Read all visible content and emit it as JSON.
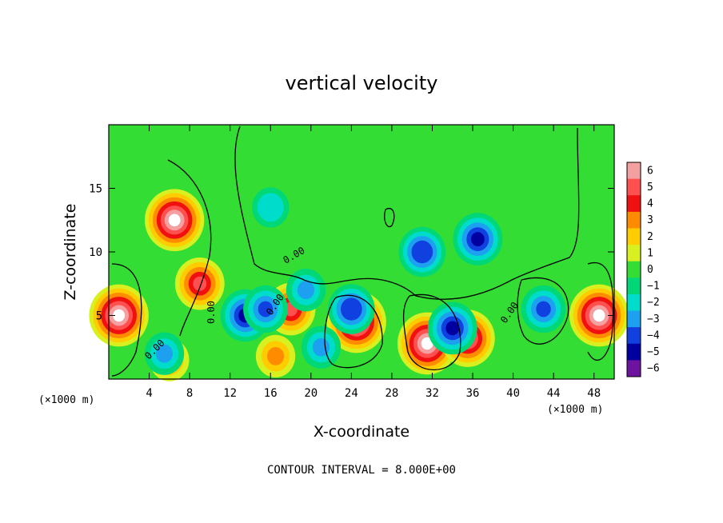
{
  "chart_data": {
    "type": "heatmap",
    "title": "vertical velocity",
    "xlabel": "X-coordinate",
    "ylabel": "Z-coordinate",
    "x_unit": "(×1000 m)",
    "y_unit": "(×1000 m)",
    "xlim": [
      0,
      50
    ],
    "ylim": [
      0,
      20
    ],
    "x_ticks": [
      4,
      8,
      12,
      16,
      20,
      24,
      28,
      32,
      36,
      40,
      44,
      48
    ],
    "y_ticks": [
      5,
      10,
      15
    ],
    "colorbar": {
      "ticks": [
        6,
        5,
        4,
        3,
        2,
        1,
        0,
        -1,
        -2,
        -3,
        -4,
        -5,
        -6
      ],
      "labels": [
        "6",
        "5",
        "4",
        "3",
        "2",
        "1",
        "0",
        "−1",
        "−2",
        "−3",
        "−4",
        "−5",
        "−6"
      ],
      "colors": [
        "#f4a0a0",
        "#ff5050",
        "#f01010",
        "#ff8c00",
        "#ffcc00",
        "#d8ef20",
        "#33dd33",
        "#00d878",
        "#00dccc",
        "#1ea0f0",
        "#1040e0",
        "#0000a0",
        "#6e12a0"
      ]
    },
    "contour_interval_text": "CONTOUR INTERVAL = 8.000E+00",
    "contour_labels": [
      "0.00",
      "0.00",
      "0.00",
      "0.00",
      "0.00"
    ],
    "features": [
      {
        "kind": "updraft",
        "x": 6.5,
        "z": 12.5,
        "strength": 7
      },
      {
        "kind": "updraft",
        "x": 9.0,
        "z": 7.5,
        "strength": 5
      },
      {
        "kind": "updraft",
        "x": 1.0,
        "z": 5.0,
        "strength": 7
      },
      {
        "kind": "updraft",
        "x": 18.0,
        "z": 5.5,
        "strength": 5
      },
      {
        "kind": "updraft",
        "x": 24.5,
        "z": 4.5,
        "strength": 7
      },
      {
        "kind": "updraft",
        "x": 31.5,
        "z": 2.8,
        "strength": 7
      },
      {
        "kind": "updraft",
        "x": 35.5,
        "z": 3.2,
        "strength": 6
      },
      {
        "kind": "updraft",
        "x": 48.5,
        "z": 5.0,
        "strength": 7
      },
      {
        "kind": "updraft",
        "x": 6.0,
        "z": 1.5,
        "strength": 3
      },
      {
        "kind": "updraft",
        "x": 16.5,
        "z": 1.8,
        "strength": 3
      },
      {
        "kind": "downdraft",
        "x": 36.5,
        "z": 11.0,
        "strength": -5
      },
      {
        "kind": "downdraft",
        "x": 31.0,
        "z": 10.0,
        "strength": -4.5
      },
      {
        "kind": "downdraft",
        "x": 24.0,
        "z": 5.5,
        "strength": -4.5
      },
      {
        "kind": "downdraft",
        "x": 13.5,
        "z": 5.0,
        "strength": -5
      },
      {
        "kind": "downdraft",
        "x": 15.5,
        "z": 5.5,
        "strength": -4
      },
      {
        "kind": "downdraft",
        "x": 43.0,
        "z": 5.5,
        "strength": -4
      },
      {
        "kind": "downdraft",
        "x": 34.0,
        "z": 4.0,
        "strength": -5
      },
      {
        "kind": "downdraft",
        "x": 5.5,
        "z": 2.0,
        "strength": -3
      },
      {
        "kind": "downdraft",
        "x": 16.0,
        "z": 13.5,
        "strength": -2.5
      },
      {
        "kind": "downdraft",
        "x": 19.5,
        "z": 7.0,
        "strength": -3
      },
      {
        "kind": "downdraft",
        "x": 21.0,
        "z": 2.5,
        "strength": -3
      }
    ]
  }
}
